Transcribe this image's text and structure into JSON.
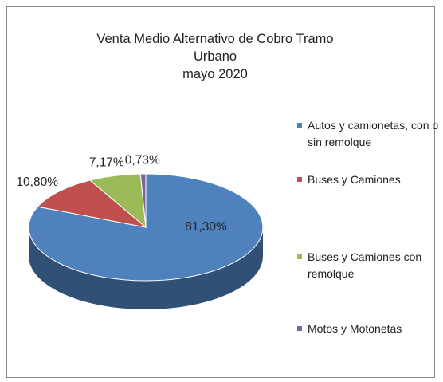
{
  "chart_data": {
    "type": "pie3d",
    "title": "Venta Medio Alternativo de Cobro Tramo Urbano",
    "subtitle": "mayo 2020",
    "categories": [
      "Autos y camionetas, con o sin remolque",
      "Buses y Camiones",
      "Buses y Camiones con remolque",
      "Motos y Motonetas"
    ],
    "values": [
      81.3,
      10.8,
      7.17,
      0.73
    ],
    "value_labels": [
      "81,30%",
      "10,80%",
      "7,17%",
      "0,73%"
    ],
    "colors": [
      "#4f81bd",
      "#c0504d",
      "#9bbb59",
      "#8064a2"
    ],
    "legend": "right"
  }
}
